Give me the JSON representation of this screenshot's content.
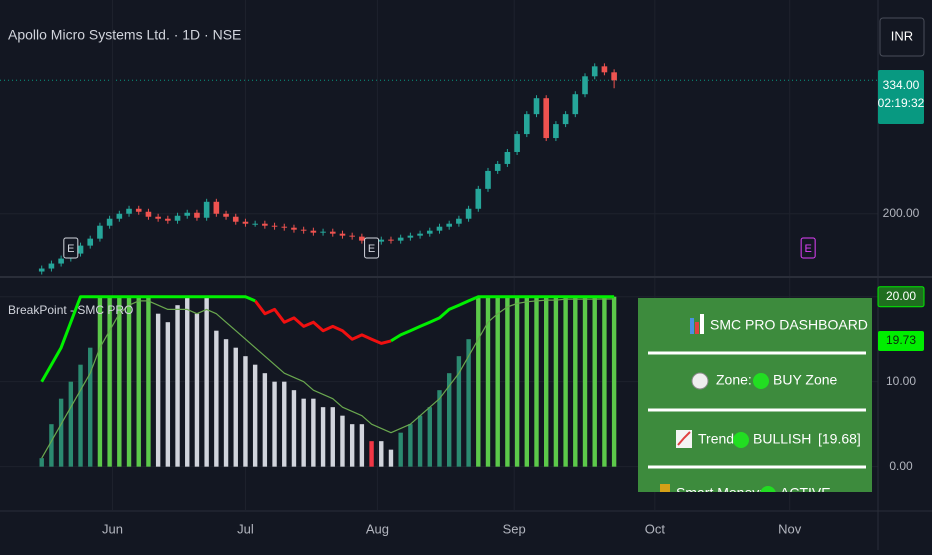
{
  "header": {
    "title": "Apollo Micro Systems Ltd. · 1D · NSE",
    "currency": "INR"
  },
  "chart_data": [
    {
      "type": "candlestick",
      "open": [
        142,
        145,
        150,
        155,
        160,
        168,
        175,
        188,
        195,
        200,
        205,
        202,
        197,
        195,
        193,
        198,
        201,
        196,
        212,
        200,
        197,
        192,
        190,
        190,
        188,
        187,
        186,
        184,
        183,
        181,
        182,
        180,
        178,
        177,
        173,
        172,
        174,
        173,
        176,
        178,
        180,
        183,
        187,
        190,
        195,
        205,
        225,
        243,
        250,
        262,
        280,
        300,
        316,
        276,
        290,
        300,
        320,
        338,
        348,
        342
      ],
      "high": [
        148,
        153,
        158,
        163,
        171,
        178,
        191,
        198,
        203,
        208,
        208,
        205,
        200,
        198,
        201,
        204,
        204,
        215,
        215,
        203,
        200,
        195,
        193,
        193,
        191,
        190,
        189,
        187,
        186,
        185,
        185,
        183,
        181,
        180,
        176,
        177,
        177,
        179,
        181,
        183,
        186,
        190,
        193,
        198,
        208,
        228,
        246,
        253,
        265,
        283,
        303,
        319,
        319,
        293,
        303,
        323,
        341,
        351,
        351,
        345
      ],
      "low": [
        139,
        142,
        147,
        152,
        157,
        165,
        172,
        185,
        192,
        197,
        199,
        194,
        192,
        190,
        190,
        195,
        193,
        193,
        197,
        194,
        189,
        187,
        187,
        185,
        184,
        183,
        181,
        180,
        178,
        178,
        177,
        175,
        174,
        170,
        169,
        169,
        170,
        170,
        173,
        175,
        177,
        180,
        184,
        187,
        192,
        202,
        222,
        240,
        247,
        259,
        277,
        297,
        273,
        273,
        287,
        297,
        317,
        335,
        339,
        326
      ],
      "close": [
        145,
        150,
        155,
        160,
        168,
        175,
        188,
        195,
        200,
        205,
        202,
        197,
        195,
        193,
        198,
        201,
        196,
        212,
        200,
        197,
        192,
        190,
        190,
        188,
        187,
        186,
        184,
        183,
        181,
        182,
        180,
        178,
        177,
        173,
        172,
        174,
        173,
        176,
        178,
        180,
        183,
        187,
        190,
        195,
        205,
        225,
        243,
        250,
        262,
        280,
        300,
        316,
        276,
        290,
        300,
        320,
        338,
        348,
        342,
        334
      ],
      "up_color": "#26a69a",
      "down_color": "#ef5350",
      "xlim": [
        -4.3,
        86.2
      ],
      "ylim": [
        137.5,
        414.6
      ],
      "yticks": [
        {
          "value": 200,
          "label": "200.00"
        }
      ],
      "last_price": {
        "value": 334,
        "label": "334.00"
      },
      "countdown": "02:19:32",
      "events": [
        {
          "x": 3,
          "label": "E",
          "color": "#d1d4dc"
        },
        {
          "x": 34,
          "label": "E",
          "color": "#d1d4dc"
        },
        {
          "x": 79,
          "label": "E",
          "color": "#e040fb"
        }
      ]
    },
    {
      "type": "bar",
      "title": "BreakPoint - SMC PRO",
      "values": [
        1,
        5,
        8,
        10,
        12,
        14,
        20,
        20,
        20,
        20,
        20,
        20,
        18,
        17,
        19,
        20,
        18,
        20,
        16,
        15,
        14,
        13,
        12,
        11,
        10,
        10,
        9,
        8,
        8,
        7,
        7,
        6,
        5,
        5,
        3,
        3,
        2,
        4,
        5,
        6,
        7,
        9,
        11,
        13,
        15,
        20,
        20,
        20,
        20,
        20,
        20,
        20,
        20,
        20,
        20,
        20,
        20,
        20,
        20,
        20
      ],
      "bar_colors": [
        "#2b8a70",
        "#2b8a70",
        "#2b8a70",
        "#2b8a70",
        "#2b8a70",
        "#2b8a70",
        "#5cc94a",
        "#5cc94a",
        "#5cc94a",
        "#5cc94a",
        "#5cc94a",
        "#5cc94a",
        "#d1d4dc",
        "#d1d4dc",
        "#d1d4dc",
        "#d1d4dc",
        "#d1d4dc",
        "#d1d4dc",
        "#d1d4dc",
        "#d1d4dc",
        "#d1d4dc",
        "#d1d4dc",
        "#d1d4dc",
        "#d1d4dc",
        "#d1d4dc",
        "#d1d4dc",
        "#d1d4dc",
        "#d1d4dc",
        "#d1d4dc",
        "#d1d4dc",
        "#d1d4dc",
        "#d1d4dc",
        "#d1d4dc",
        "#d1d4dc",
        "#f23645",
        "#d1d4dc",
        "#d1d4dc",
        "#2b8a70",
        "#2b8a70",
        "#2b8a70",
        "#2b8a70",
        "#2b8a70",
        "#2b8a70",
        "#2b8a70",
        "#2b8a70",
        "#5cc94a",
        "#5cc94a",
        "#5cc94a",
        "#5cc94a",
        "#5cc94a",
        "#5cc94a",
        "#5cc94a",
        "#5cc94a",
        "#5cc94a",
        "#5cc94a",
        "#5cc94a",
        "#5cc94a",
        "#5cc94a",
        "#5cc94a",
        "#5cc94a"
      ],
      "series": [
        {
          "color": "#00f000",
          "values": [
            10,
            12,
            14,
            17,
            20,
            20,
            20,
            20,
            20,
            20,
            20,
            20,
            20,
            20,
            20,
            20,
            20,
            20,
            20,
            20,
            20,
            20,
            19.5,
            null,
            null,
            null,
            null,
            null,
            null,
            null,
            null,
            null,
            null,
            null,
            null,
            null,
            14.8,
            15.5,
            16,
            16.5,
            17,
            17.5,
            18.5,
            19,
            19.5,
            20,
            20,
            20,
            20,
            20,
            20,
            20,
            20,
            20,
            20,
            20,
            20,
            20,
            20,
            20
          ]
        },
        {
          "color": "#f01010",
          "values": [
            null,
            null,
            null,
            null,
            null,
            null,
            null,
            null,
            null,
            null,
            null,
            null,
            null,
            null,
            null,
            null,
            null,
            null,
            null,
            null,
            null,
            null,
            19.5,
            18,
            18.5,
            17,
            17.5,
            16.5,
            17,
            16,
            16.5,
            16,
            15,
            15.5,
            15,
            14.5,
            14.8,
            null,
            null,
            null,
            null,
            null,
            null,
            null,
            null,
            null,
            null,
            null,
            null,
            null,
            null,
            null,
            null,
            null,
            null,
            null,
            null,
            null,
            null,
            null
          ]
        },
        {
          "color": "#6aa84f",
          "values": [
            1,
            3,
            5,
            7,
            9,
            11,
            14,
            16,
            18,
            19,
            19.5,
            19.5,
            19,
            18.5,
            18.5,
            18.5,
            18,
            18.5,
            18,
            17,
            16,
            15,
            14,
            13,
            12,
            11,
            10.5,
            10,
            9,
            8.5,
            8,
            7,
            6.5,
            6,
            5,
            4.5,
            4,
            4.5,
            5,
            6,
            7,
            8,
            9.5,
            11,
            13,
            15,
            17,
            18,
            18.8,
            19.2,
            19.4,
            19.5,
            19.6,
            19.6,
            19.7,
            19.7,
            19.7,
            19.7,
            19.73,
            19.73
          ]
        }
      ],
      "last_value": 19.73,
      "xlim": [
        -4.3,
        86.2
      ],
      "ylim": [
        -5.1,
        22.2
      ],
      "yticks": [
        {
          "value": 0,
          "label": "0.00"
        },
        {
          "value": 10,
          "label": "10.00"
        },
        {
          "value": 20,
          "label": "20.00"
        }
      ],
      "xticks": [
        {
          "value": 7.3,
          "label": "Jun"
        },
        {
          "value": 21,
          "label": "Jul"
        },
        {
          "value": 34.6,
          "label": "Aug"
        },
        {
          "value": 48.7,
          "label": "Sep"
        },
        {
          "value": 63.2,
          "label": "Oct"
        },
        {
          "value": 77.1,
          "label": "Nov"
        }
      ]
    }
  ],
  "dashboard": {
    "title": "SMC PRO DASHBOARD",
    "rows": [
      {
        "label": "Zone:",
        "value": "BUY Zone"
      },
      {
        "label": "Trend:",
        "value": "BULLISH",
        "extra": "[19.68]"
      },
      {
        "label": "Smart Money:",
        "value": "ACTIVE"
      }
    ]
  }
}
